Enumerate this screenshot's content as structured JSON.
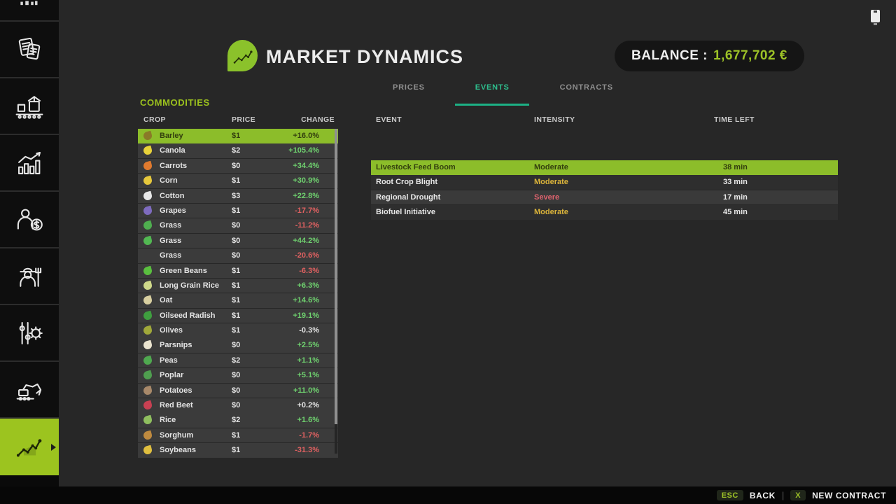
{
  "header": {
    "title": "MARKET DYNAMICS",
    "balance_label": "BALANCE :",
    "balance_value": "1,677,702 €"
  },
  "status": {
    "battery_icon": "battery-icon"
  },
  "tabs": [
    {
      "label": "PRICES",
      "active": false
    },
    {
      "label": "EVENTS",
      "active": true
    },
    {
      "label": "CONTRACTS",
      "active": false
    }
  ],
  "commodities": {
    "title": "COMMODITIES",
    "columns": [
      "CROP",
      "PRICE",
      "CHANGE"
    ],
    "rows": [
      {
        "crop": "Barley",
        "price": "$1",
        "change": "+16.0%",
        "trend": "up",
        "selected": true,
        "icon": "barley-icon",
        "icon_color": "#8a7a28"
      },
      {
        "crop": "Canola",
        "price": "$2",
        "change": "+105.4%",
        "trend": "up",
        "selected": false,
        "icon": "canola-icon",
        "icon_color": "#e8d23a"
      },
      {
        "crop": "Carrots",
        "price": "$0",
        "change": "+34.4%",
        "trend": "up",
        "selected": false,
        "icon": "carrot-icon",
        "icon_color": "#e07a2e"
      },
      {
        "crop": "Corn",
        "price": "$1",
        "change": "+30.9%",
        "trend": "up",
        "selected": false,
        "icon": "corn-icon",
        "icon_color": "#e6c83c"
      },
      {
        "crop": "Cotton",
        "price": "$3",
        "change": "+22.8%",
        "trend": "up",
        "selected": false,
        "icon": "cotton-icon",
        "icon_color": "#e8e8e8"
      },
      {
        "crop": "Grapes",
        "price": "$1",
        "change": "-17.7%",
        "trend": "down",
        "selected": false,
        "icon": "grapes-icon",
        "icon_color": "#7e6bbf"
      },
      {
        "crop": "Grass",
        "price": "$0",
        "change": "-11.2%",
        "trend": "down",
        "selected": false,
        "icon": "grass-icon",
        "icon_color": "#4fae4f"
      },
      {
        "crop": "Grass",
        "price": "$0",
        "change": "+44.2%",
        "trend": "up",
        "selected": false,
        "icon": "grass-icon",
        "icon_color": "#52b852"
      },
      {
        "crop": "Grass",
        "price": "$0",
        "change": "-20.6%",
        "trend": "down",
        "selected": false,
        "icon": "",
        "icon_color": null
      },
      {
        "crop": "Green Beans",
        "price": "$1",
        "change": "-6.3%",
        "trend": "down",
        "selected": false,
        "icon": "green-beans-icon",
        "icon_color": "#5abf3f"
      },
      {
        "crop": "Long Grain Rice",
        "price": "$1",
        "change": "+6.3%",
        "trend": "up",
        "selected": false,
        "icon": "long-grain-rice-icon",
        "icon_color": "#cfd98a"
      },
      {
        "crop": "Oat",
        "price": "$1",
        "change": "+14.6%",
        "trend": "up",
        "selected": false,
        "icon": "oat-icon",
        "icon_color": "#d8cfa0"
      },
      {
        "crop": "Oilseed Radish",
        "price": "$1",
        "change": "+19.1%",
        "trend": "up",
        "selected": false,
        "icon": "oilseed-radish-icon",
        "icon_color": "#3f9e3f"
      },
      {
        "crop": "Olives",
        "price": "$1",
        "change": "-0.3%",
        "trend": "flat",
        "selected": false,
        "icon": "olives-icon",
        "icon_color": "#a0a83a"
      },
      {
        "crop": "Parsnips",
        "price": "$0",
        "change": "+2.5%",
        "trend": "up",
        "selected": false,
        "icon": "parsnip-icon",
        "icon_color": "#eae4cf"
      },
      {
        "crop": "Peas",
        "price": "$2",
        "change": "+1.1%",
        "trend": "up",
        "selected": false,
        "icon": "peas-icon",
        "icon_color": "#4fa84f"
      },
      {
        "crop": "Poplar",
        "price": "$0",
        "change": "+5.1%",
        "trend": "up",
        "selected": false,
        "icon": "poplar-icon",
        "icon_color": "#4f9e4f"
      },
      {
        "crop": "Potatoes",
        "price": "$0",
        "change": "+11.0%",
        "trend": "up",
        "selected": false,
        "icon": "potato-icon",
        "icon_color": "#a8896a"
      },
      {
        "crop": "Red Beet",
        "price": "$0",
        "change": "+0.2%",
        "trend": "flat",
        "selected": false,
        "icon": "red-beet-icon",
        "icon_color": "#c84052"
      },
      {
        "crop": "Rice",
        "price": "$2",
        "change": "+1.6%",
        "trend": "up",
        "selected": false,
        "icon": "rice-icon",
        "icon_color": "#8fbf5f"
      },
      {
        "crop": "Sorghum",
        "price": "$1",
        "change": "-1.7%",
        "trend": "down",
        "selected": false,
        "icon": "sorghum-icon",
        "icon_color": "#bf8a3f"
      },
      {
        "crop": "Soybeans",
        "price": "$1",
        "change": "-31.3%",
        "trend": "down",
        "selected": false,
        "icon": "soybeans-icon",
        "icon_color": "#e0bf3f"
      }
    ]
  },
  "events": {
    "columns": [
      "EVENT",
      "INTENSITY",
      "TIME LEFT"
    ],
    "rows": [
      {
        "event": "Livestock Feed Boom",
        "intensity": "Moderate",
        "level": "moderate",
        "time_left": "38 min",
        "selected": true
      },
      {
        "event": "Root Crop Blight",
        "intensity": "Moderate",
        "level": "moderate",
        "time_left": "33 min",
        "selected": false
      },
      {
        "event": "Regional Drought",
        "intensity": "Severe",
        "level": "severe",
        "time_left": "17 min",
        "selected": false
      },
      {
        "event": "Biofuel Initiative",
        "intensity": "Moderate",
        "level": "moderate",
        "time_left": "45 min",
        "selected": false
      }
    ]
  },
  "sidebar": {
    "items": [
      {
        "name": "animals",
        "icon": "animals-partial-icon",
        "partial": true,
        "active": false
      },
      {
        "name": "contracts",
        "icon": "contracts-icon",
        "partial": false,
        "active": false
      },
      {
        "name": "production",
        "icon": "production-icon",
        "partial": false,
        "active": false
      },
      {
        "name": "statistics",
        "icon": "statistics-icon",
        "partial": false,
        "active": false
      },
      {
        "name": "sales",
        "icon": "sales-icon",
        "partial": false,
        "active": false
      },
      {
        "name": "workers",
        "icon": "workers-icon",
        "partial": false,
        "active": false
      },
      {
        "name": "settings",
        "icon": "settings-icon",
        "partial": false,
        "active": false
      },
      {
        "name": "construction",
        "icon": "construction-icon",
        "partial": false,
        "active": false
      },
      {
        "name": "market-dynamics",
        "icon": "market-chart-icon",
        "partial": false,
        "active": true
      }
    ]
  },
  "footer": {
    "back_key": "ESC",
    "back_label": "BACK",
    "separator": "|",
    "contract_key": "X",
    "contract_label": "NEW CONTRACT"
  },
  "colors": {
    "accent_green": "#8cbd2a",
    "sidebar_active_green": "#9cc41f",
    "tab_teal": "#2ebf8e",
    "positive_change": "#6fd16f",
    "negative_change": "#e06161",
    "moderate_yellow": "#d9b23a",
    "severe_red": "#e0636e",
    "balance_green": "#9dc227"
  }
}
